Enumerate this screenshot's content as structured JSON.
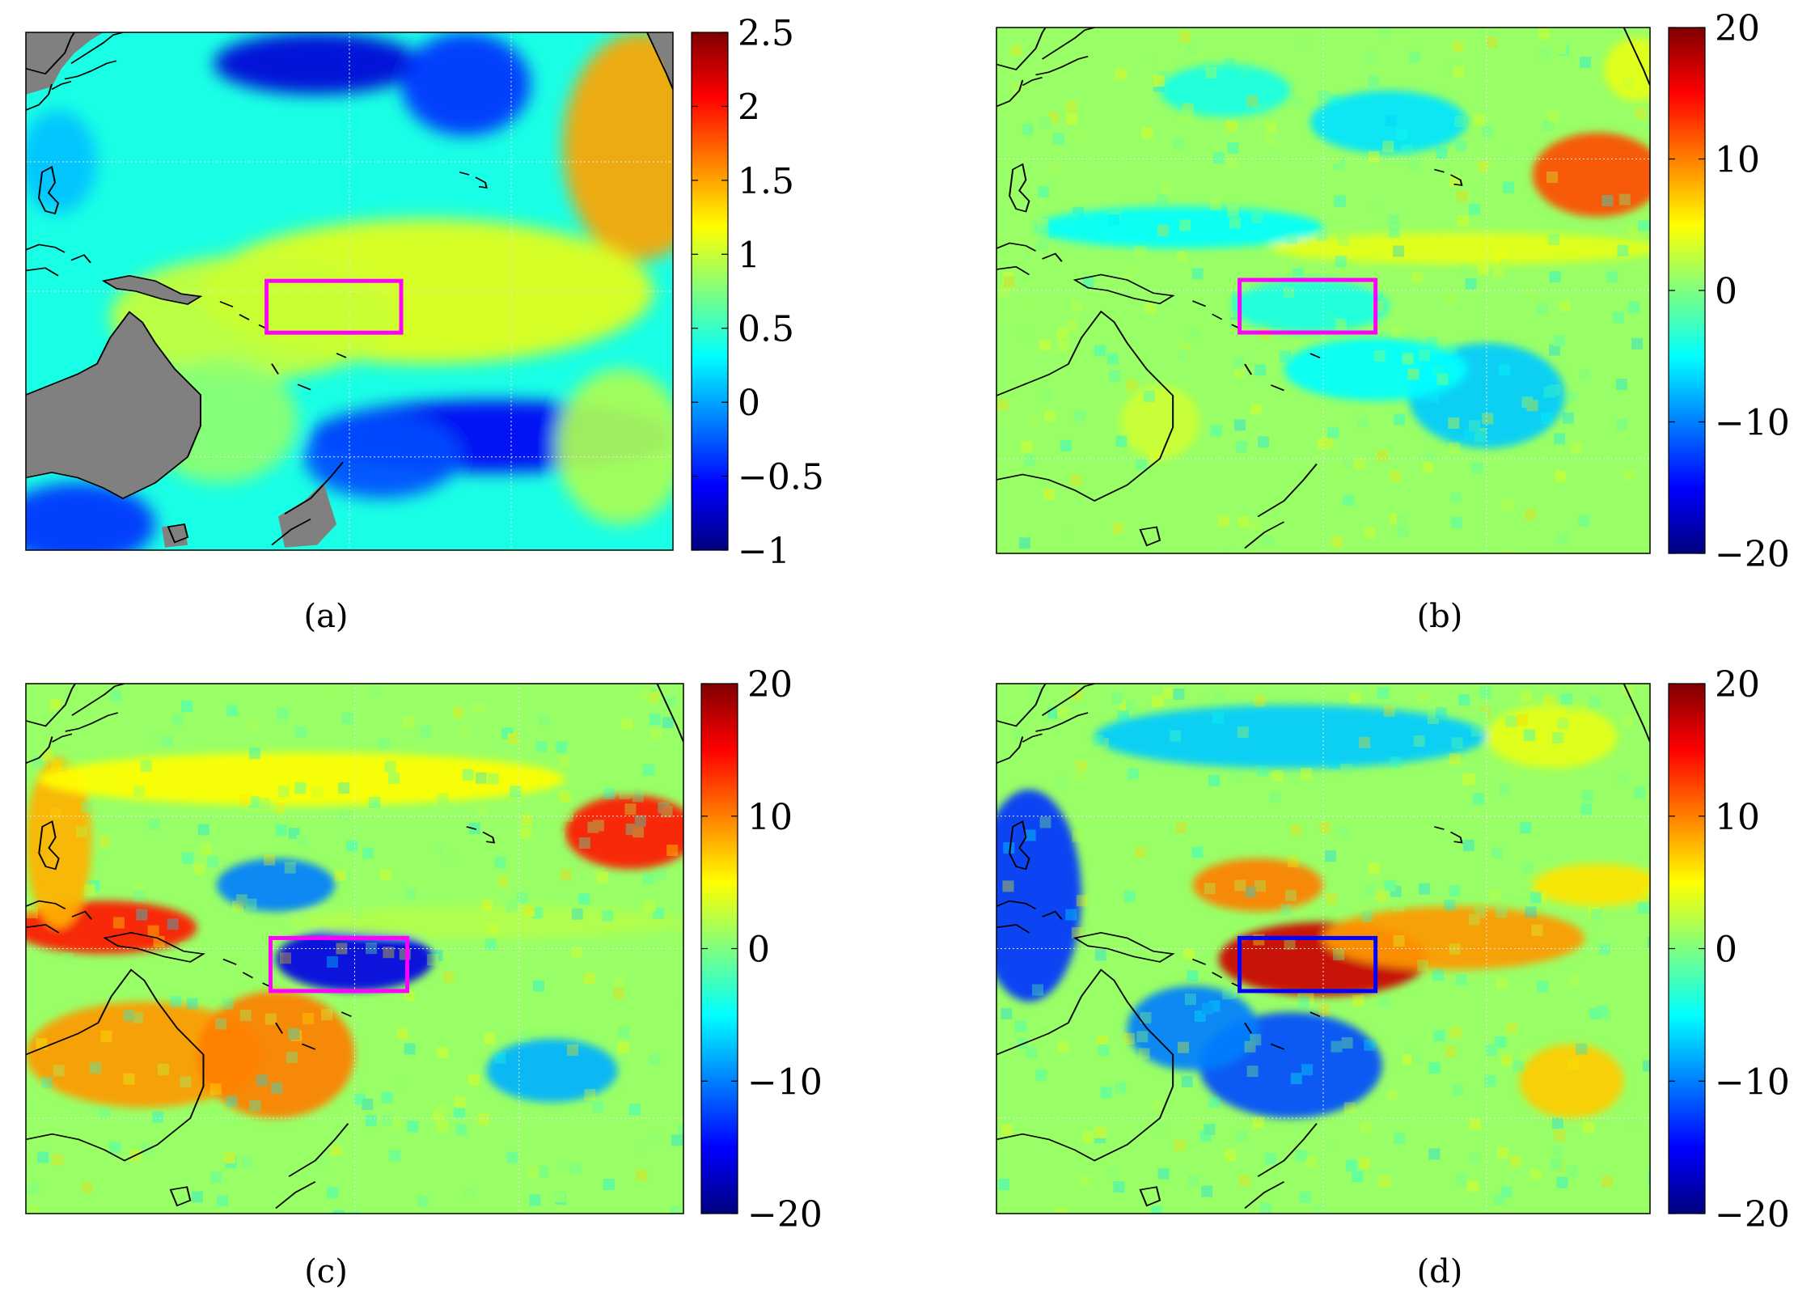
{
  "colorscale": {
    "name": "jet",
    "stops": [
      "#00007f",
      "#0000ff",
      "#007fff",
      "#00ffff",
      "#7fff7f",
      "#ffff00",
      "#ff7f00",
      "#ff0000",
      "#7f0000"
    ]
  },
  "land_color": "#808080",
  "coast_color": "#000000",
  "grid": "on",
  "chart_data": [
    {
      "type": "heatmap",
      "panel_label": "(a)",
      "letter": "a",
      "colorbar": {
        "min": -1,
        "max": 2.5,
        "ticks": [
          "2.5",
          "2",
          "1.5",
          "1",
          "0.5",
          "0",
          "−0.5",
          "−1"
        ],
        "tick_values": [
          2.5,
          2,
          1.5,
          1,
          0.5,
          0,
          -0.5,
          -1
        ]
      },
      "land_masked": true,
      "box_color": "#ff00ff",
      "features": [
        {
          "u": 0.45,
          "v": 0.06,
          "ru": 0.16,
          "rv": 0.06,
          "value": -0.7
        },
        {
          "u": 0.68,
          "v": 0.1,
          "ru": 0.1,
          "rv": 0.1,
          "value": -0.4
        },
        {
          "u": 0.95,
          "v": 0.22,
          "ru": 0.12,
          "rv": 0.22,
          "value": 1.5
        },
        {
          "u": 0.62,
          "v": 0.5,
          "ru": 0.35,
          "rv": 0.14,
          "value": 1.1
        },
        {
          "u": 0.35,
          "v": 0.55,
          "ru": 0.22,
          "rv": 0.12,
          "value": 1.0
        },
        {
          "u": 0.3,
          "v": 0.75,
          "ru": 0.12,
          "rv": 0.12,
          "value": 0.8
        },
        {
          "u": 0.72,
          "v": 0.78,
          "ru": 0.28,
          "rv": 0.07,
          "value": -0.6
        },
        {
          "u": 0.55,
          "v": 0.82,
          "ru": 0.12,
          "rv": 0.08,
          "value": -0.3
        },
        {
          "u": 0.08,
          "v": 0.95,
          "ru": 0.12,
          "rv": 0.08,
          "value": -0.4
        },
        {
          "u": 0.92,
          "v": 0.8,
          "ru": 0.1,
          "rv": 0.15,
          "value": 0.9
        },
        {
          "u": 0.05,
          "v": 0.25,
          "ru": 0.06,
          "rv": 0.1,
          "value": 0.1
        }
      ]
    },
    {
      "type": "heatmap",
      "panel_label": "(b)",
      "letter": "b",
      "colorbar": {
        "min": -20,
        "max": 20,
        "ticks": [
          "20",
          "10",
          "0",
          "−10",
          "−20"
        ],
        "tick_values": [
          20,
          10,
          0,
          -10,
          -20
        ]
      },
      "land_masked": false,
      "box_color": "#ff00ff",
      "features": [
        {
          "u": 0.92,
          "v": 0.28,
          "ru": 0.1,
          "rv": 0.08,
          "value": 12
        },
        {
          "u": 0.6,
          "v": 0.18,
          "ru": 0.12,
          "rv": 0.06,
          "value": -6
        },
        {
          "u": 0.35,
          "v": 0.12,
          "ru": 0.1,
          "rv": 0.05,
          "value": -4
        },
        {
          "u": 0.28,
          "v": 0.38,
          "ru": 0.22,
          "rv": 0.04,
          "value": -5
        },
        {
          "u": 0.72,
          "v": 0.42,
          "ru": 0.3,
          "rv": 0.03,
          "value": 4
        },
        {
          "u": 0.48,
          "v": 0.53,
          "ru": 0.12,
          "rv": 0.05,
          "value": -4
        },
        {
          "u": 0.75,
          "v": 0.7,
          "ru": 0.12,
          "rv": 0.1,
          "value": -7
        },
        {
          "u": 0.58,
          "v": 0.65,
          "ru": 0.14,
          "rv": 0.06,
          "value": -5
        },
        {
          "u": 0.25,
          "v": 0.75,
          "ru": 0.06,
          "rv": 0.07,
          "value": 3
        },
        {
          "u": 0.98,
          "v": 0.08,
          "ru": 0.05,
          "rv": 0.06,
          "value": 4
        },
        {
          "u": 0.08,
          "v": 0.78,
          "ru": 0.1,
          "rv": 0.08,
          "value": 1
        }
      ]
    },
    {
      "type": "heatmap",
      "panel_label": "(c)",
      "letter": "c",
      "colorbar": {
        "min": -20,
        "max": 20,
        "ticks": [
          "20",
          "10",
          "0",
          "−10",
          "−20"
        ],
        "tick_values": [
          20,
          10,
          0,
          -10,
          -20
        ]
      },
      "land_masked": false,
      "box_color": "#ff00ff",
      "features": [
        {
          "u": 0.5,
          "v": 0.52,
          "ru": 0.12,
          "rv": 0.06,
          "value": -16
        },
        {
          "u": 0.38,
          "v": 0.38,
          "ru": 0.09,
          "rv": 0.05,
          "value": -10
        },
        {
          "u": 0.12,
          "v": 0.46,
          "ru": 0.14,
          "rv": 0.05,
          "value": 14
        },
        {
          "u": 0.05,
          "v": 0.3,
          "ru": 0.05,
          "rv": 0.16,
          "value": 8
        },
        {
          "u": 0.18,
          "v": 0.7,
          "ru": 0.18,
          "rv": 0.1,
          "value": 9
        },
        {
          "u": 0.38,
          "v": 0.7,
          "ru": 0.12,
          "rv": 0.12,
          "value": 10
        },
        {
          "u": 0.92,
          "v": 0.28,
          "ru": 0.1,
          "rv": 0.07,
          "value": 14
        },
        {
          "u": 0.42,
          "v": 0.18,
          "ru": 0.4,
          "rv": 0.05,
          "value": 5
        },
        {
          "u": 0.8,
          "v": 0.73,
          "ru": 0.1,
          "rv": 0.06,
          "value": -8
        },
        {
          "u": 0.7,
          "v": 0.45,
          "ru": 0.3,
          "rv": 0.03,
          "value": 2
        }
      ]
    },
    {
      "type": "heatmap",
      "panel_label": "(d)",
      "letter": "d",
      "colorbar": {
        "min": -20,
        "max": 20,
        "ticks": [
          "20",
          "10",
          "0",
          "−10",
          "−20"
        ],
        "tick_values": [
          20,
          10,
          0,
          -10,
          -20
        ]
      },
      "land_masked": false,
      "box_color": "#0000ff",
      "features": [
        {
          "u": 0.5,
          "v": 0.52,
          "ru": 0.16,
          "rv": 0.07,
          "value": 17
        },
        {
          "u": 0.4,
          "v": 0.38,
          "ru": 0.1,
          "rv": 0.05,
          "value": 10
        },
        {
          "u": 0.7,
          "v": 0.48,
          "ru": 0.2,
          "rv": 0.06,
          "value": 9
        },
        {
          "u": 0.92,
          "v": 0.38,
          "ru": 0.1,
          "rv": 0.04,
          "value": 6
        },
        {
          "u": 0.05,
          "v": 0.4,
          "ru": 0.08,
          "rv": 0.2,
          "value": -13
        },
        {
          "u": 0.45,
          "v": 0.72,
          "ru": 0.14,
          "rv": 0.1,
          "value": -12
        },
        {
          "u": 0.3,
          "v": 0.65,
          "ru": 0.1,
          "rv": 0.08,
          "value": -10
        },
        {
          "u": 0.45,
          "v": 0.1,
          "ru": 0.3,
          "rv": 0.06,
          "value": -7
        },
        {
          "u": 0.88,
          "v": 0.75,
          "ru": 0.08,
          "rv": 0.07,
          "value": 7
        },
        {
          "u": 0.85,
          "v": 0.1,
          "ru": 0.1,
          "rv": 0.06,
          "value": 4
        }
      ]
    }
  ]
}
